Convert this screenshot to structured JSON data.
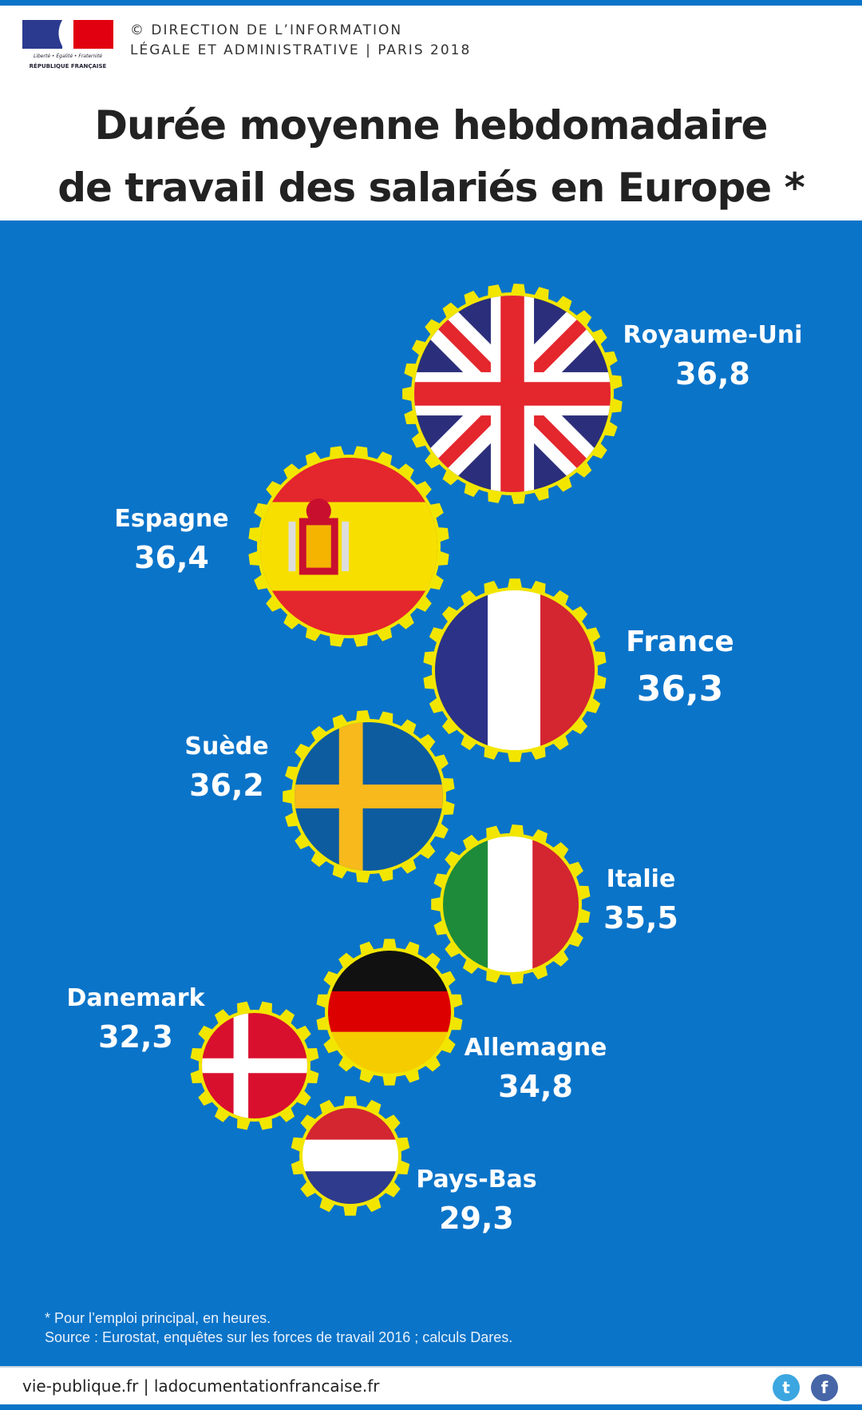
{
  "header": {
    "logo_text": [
      "Liberté • Égalité • Fraternité",
      "RÉPUBLIQUE FRANÇAISE"
    ],
    "credit_line1": "© DIRECTION DE L’INFORMATION",
    "credit_line2": "LÉGALE ET ADMINISTRATIVE | PARIS 2018",
    "title_line1": "Durée moyenne hebdomadaire",
    "title_line2": "de travail des salariés en Europe *"
  },
  "chart_data": {
    "type": "table",
    "title": "Durée moyenne hebdomadaire de travail des salariés en Europe *",
    "categories": [
      "Royaume-Uni",
      "Espagne",
      "France",
      "Suède",
      "Italie",
      "Allemagne",
      "Danemark",
      "Pays-Bas"
    ],
    "values": [
      "36,8",
      "36,4",
      "36,3",
      "36,2",
      "35,5",
      "34,8",
      "32,3",
      "29,3"
    ],
    "numeric_values": [
      36.8,
      36.4,
      36.3,
      36.2,
      35.5,
      34.8,
      32.3,
      29.3
    ],
    "flags": [
      "uk",
      "es",
      "fr",
      "se",
      "it",
      "de",
      "dk",
      "nl"
    ],
    "highlight": "France",
    "colors": {
      "background": "#0a74c9",
      "gear": "#f2e600",
      "label": "#ffffff",
      "highlight": "#f2e600"
    }
  },
  "notes": {
    "line1": "* Pour l’emploi principal, en heures.",
    "line2": "Source : Eurostat, enquêtes sur les forces de travail 2016 ; calculs Dares."
  },
  "footer": {
    "links": "vie-publique.fr | ladocumentationfrancaise.fr",
    "twitter_icon": "twitter-icon",
    "facebook_icon": "facebook-icon"
  }
}
